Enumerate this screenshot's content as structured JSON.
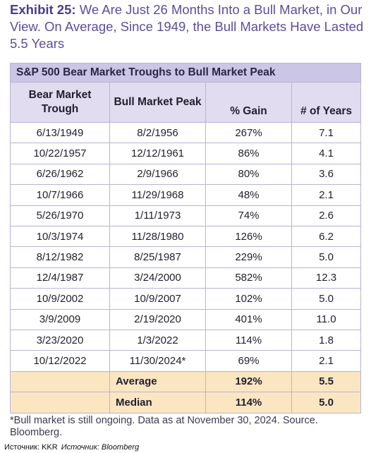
{
  "title": {
    "exhibit": "Exhibit 25:",
    "text": " We Are Just 26 Months Into a Bull Market, in Our View. On Average, Since 1949, the Bull Markets Have Lasted 5.5 Years"
  },
  "table": {
    "caption": "S&P 500 Bear Market Troughs to Bull Market Peak",
    "headers": [
      "Bear Market Trough",
      "Bull Market Peak",
      "% Gain",
      "# of Years"
    ],
    "rows": [
      [
        "6/13/1949",
        "8/2/1956",
        "267%",
        "7.1"
      ],
      [
        "10/22/1957",
        "12/12/1961",
        "86%",
        "4.1"
      ],
      [
        "6/26/1962",
        "2/9/1966",
        "80%",
        "3.6"
      ],
      [
        "10/7/1966",
        "11/29/1968",
        "48%",
        "2.1"
      ],
      [
        "5/26/1970",
        "1/11/1973",
        "74%",
        "2.6"
      ],
      [
        "10/3/1974",
        "11/28/1980",
        "126%",
        "6.2"
      ],
      [
        "8/12/1982",
        "8/25/1987",
        "229%",
        "5.0"
      ],
      [
        "12/4/1987",
        "3/24/2000",
        "582%",
        "12.3"
      ],
      [
        "10/9/2002",
        "10/9/2007",
        "102%",
        "5.0"
      ],
      [
        "3/9/2009",
        "2/19/2020",
        "401%",
        "11.0"
      ],
      [
        "3/23/2020",
        "1/3/2022",
        "114%",
        "1.8"
      ],
      [
        "10/12/2022",
        "11/30/2024*",
        "69%",
        "2.1"
      ]
    ],
    "summary": [
      {
        "label": "Average",
        "gain": "192%",
        "years": "5.5"
      },
      {
        "label": "Median",
        "gain": "114%",
        "years": "5.0"
      }
    ]
  },
  "footnote": "*Bull market is still ongoing. Data as at November 30, 2024. Source. Bloomberg.",
  "source": {
    "left": "Источник: KKR",
    "right": "Источник: Bloomberg"
  }
}
